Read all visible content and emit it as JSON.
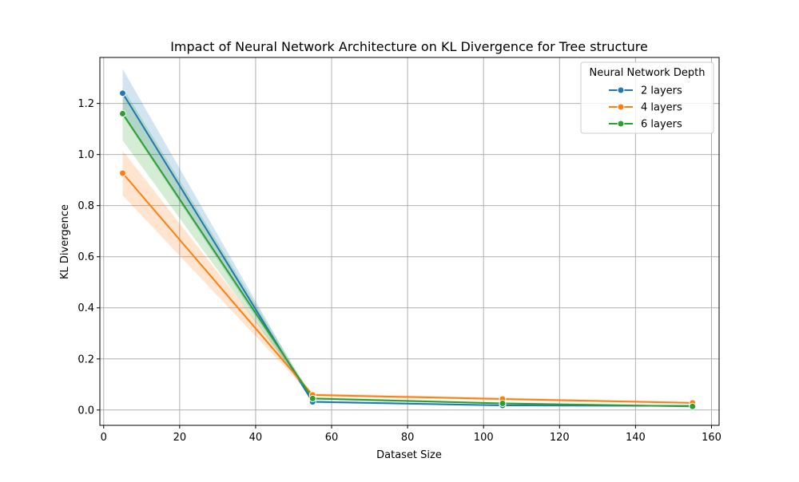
{
  "chart_data": {
    "type": "line",
    "title": "Impact of Neural Network Architecture on KL Divergence for Tree structure",
    "xlabel": "Dataset Size",
    "ylabel": "KL Divergence",
    "xlim": [
      -1,
      162
    ],
    "ylim": [
      -0.06,
      1.38
    ],
    "xticks": [
      0,
      20,
      40,
      60,
      80,
      100,
      120,
      140,
      160
    ],
    "xtick_labels": [
      "0",
      "20",
      "40",
      "60",
      "80",
      "100",
      "120",
      "140",
      "160"
    ],
    "yticks": [
      0.0,
      0.2,
      0.4,
      0.6,
      0.8,
      1.0,
      1.2
    ],
    "ytick_labels": [
      "0.0",
      "0.2",
      "0.4",
      "0.6",
      "0.8",
      "1.0",
      "1.2"
    ],
    "grid": true,
    "legend": {
      "title": "Neural Network Depth",
      "position": "top-right"
    },
    "x": [
      5,
      55,
      105,
      155
    ],
    "series": [
      {
        "name": "2 layers",
        "color": "#1f77b4",
        "values": [
          1.24,
          0.032,
          0.018,
          0.016
        ],
        "ci_low": [
          1.15,
          0.027,
          0.015,
          0.013
        ],
        "ci_high": [
          1.335,
          0.037,
          0.021,
          0.019
        ]
      },
      {
        "name": "4 layers",
        "color": "#ff7f0e",
        "values": [
          0.927,
          0.059,
          0.043,
          0.028
        ],
        "ci_low": [
          0.84,
          0.053,
          0.038,
          0.024
        ],
        "ci_high": [
          1.015,
          0.065,
          0.048,
          0.032
        ]
      },
      {
        "name": "6 layers",
        "color": "#2ca02c",
        "values": [
          1.16,
          0.045,
          0.026,
          0.014
        ],
        "ci_low": [
          1.055,
          0.04,
          0.022,
          0.011
        ],
        "ci_high": [
          1.262,
          0.05,
          0.03,
          0.017
        ]
      }
    ]
  }
}
